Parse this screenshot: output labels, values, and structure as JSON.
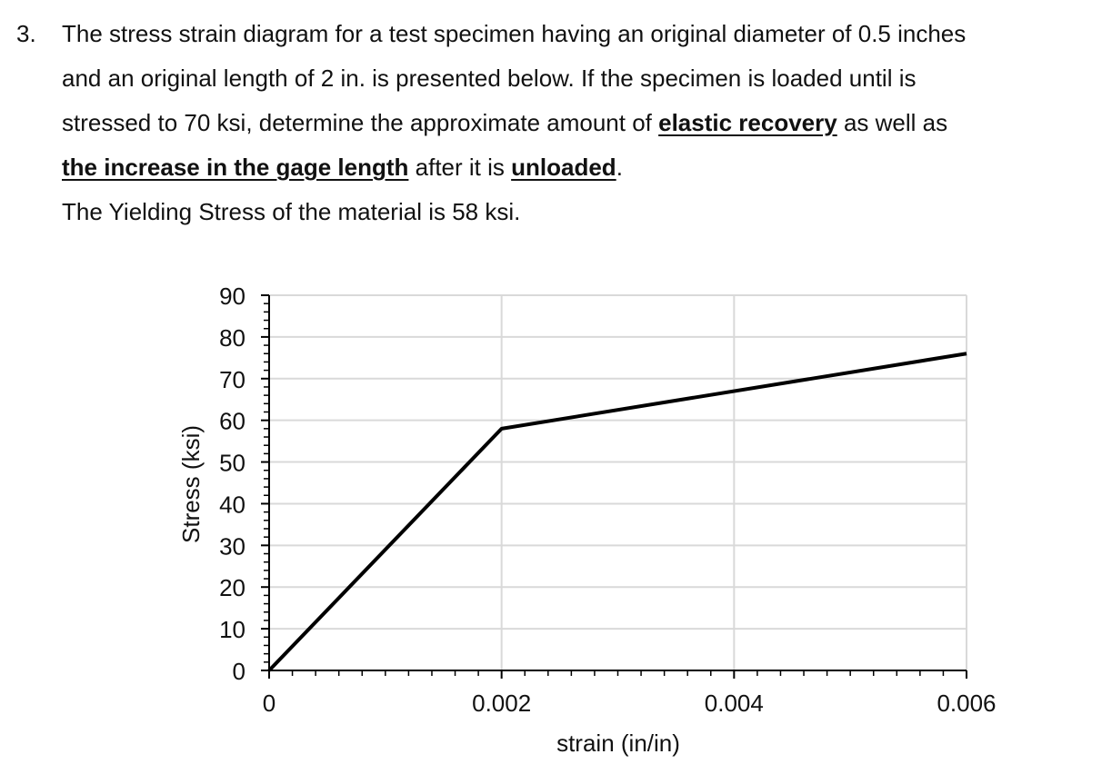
{
  "problem": {
    "number": "3.",
    "line1": "The stress strain diagram for a test specimen having an original diameter of 0.5 inches",
    "line2": "and an original length of 2 in. is presented below. If the specimen is loaded until is",
    "line3_a": "stressed to 70 ksi, determine the approximate amount of ",
    "line3_b": "elastic recovery",
    "line3_c": " as well as",
    "line4_a": "the increase in the gage length",
    "line4_b": " after it is ",
    "line4_c": "unloaded",
    "line4_d": ".",
    "line5": "The Yielding Stress of the material is 58 ksi."
  },
  "chart_data": {
    "type": "line",
    "title": "",
    "xlabel": "strain (in/in)",
    "ylabel": "Stress (ksi)",
    "xlim": [
      0,
      0.006
    ],
    "ylim": [
      0,
      90
    ],
    "xticks": [
      "0",
      "0.002",
      "0.004",
      "0.006"
    ],
    "yticks": [
      "0",
      "10",
      "20",
      "30",
      "40",
      "50",
      "60",
      "70",
      "80",
      "90"
    ],
    "grid": true,
    "series": [
      {
        "x": [
          0,
          0.002,
          0.006
        ],
        "y": [
          0,
          58,
          76
        ]
      }
    ],
    "colors": {
      "line": "#000000",
      "grid": "#d9d9d9",
      "axis": "#000000"
    }
  }
}
